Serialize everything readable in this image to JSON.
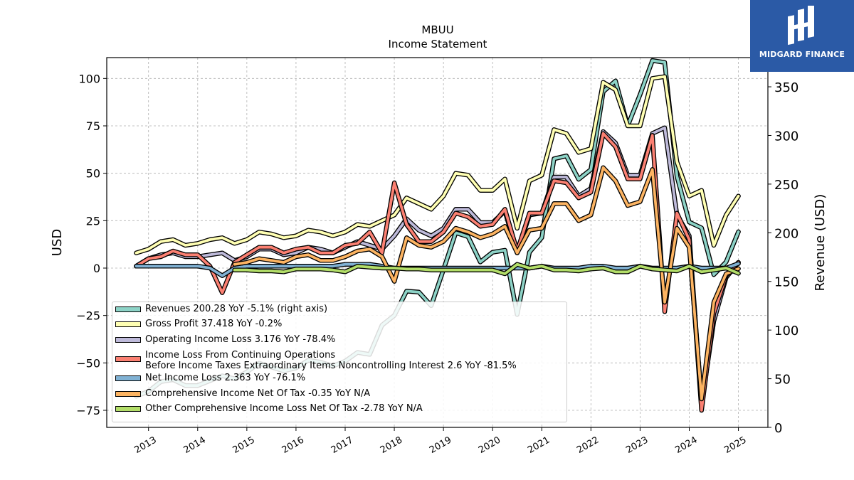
{
  "header": {
    "ticker": "MBUU",
    "subtitle": "Income Statement"
  },
  "logo": {
    "text": "MIDGARD FINANCE",
    "icon": "midgard-logo-icon",
    "background": "#2b5aa6"
  },
  "chart_data": {
    "type": "line",
    "title": "MBUU",
    "subtitle": "Income Statement",
    "ylabel": "USD",
    "ylabel_right": "Revenue (USD)",
    "ylim": [
      -84,
      111
    ],
    "ylim_right": [
      0,
      380
    ],
    "yticks": [
      "-75",
      "-50",
      "-25",
      "0",
      "25",
      "50",
      "75",
      "100"
    ],
    "yticks_right": [
      "0",
      "50",
      "100",
      "150",
      "200",
      "250",
      "300",
      "350"
    ],
    "xlim": [
      2012.15,
      2025.6
    ],
    "xticks": [
      "2013",
      "2014",
      "2015",
      "2016",
      "2017",
      "2018",
      "2019",
      "2020",
      "2021",
      "2022",
      "2023",
      "2024",
      "2025"
    ],
    "grid": true,
    "legend_position": "lower-left",
    "x": [
      2012.75,
      2013.0,
      2013.25,
      2013.5,
      2013.75,
      2014.0,
      2014.25,
      2014.5,
      2014.75,
      2015.0,
      2015.25,
      2015.5,
      2015.75,
      2016.0,
      2016.25,
      2016.5,
      2016.75,
      2017.0,
      2017.25,
      2017.5,
      2017.75,
      2018.0,
      2018.25,
      2018.5,
      2018.75,
      2019.0,
      2019.25,
      2019.5,
      2019.75,
      2020.0,
      2020.25,
      2020.5,
      2020.75,
      2021.0,
      2021.25,
      2021.5,
      2021.75,
      2022.0,
      2022.25,
      2022.5,
      2022.75,
      2023.0,
      2023.25,
      2023.5,
      2023.75,
      2024.0,
      2024.25,
      2024.5,
      2024.75,
      2025.0
    ],
    "series": [
      {
        "name": "Revenues  200.28 YoY -5.1% (right axis)",
        "axis": "right",
        "color": "#8dd3c7",
        "values": [
          32,
          37,
          47,
          49,
          43,
          43,
          48,
          53,
          50,
          57,
          66,
          62,
          58,
          61,
          69,
          67,
          63,
          68,
          77,
          75,
          105,
          115,
          140,
          139,
          125,
          162,
          200,
          196,
          170,
          180,
          182,
          116,
          180,
          195,
          276,
          279,
          255,
          265,
          345,
          356,
          310,
          342,
          377,
          375,
          258,
          211,
          205,
          157,
          170,
          201
        ]
      },
      {
        "name": "Gross Profit  37.418 YoY -0.2%",
        "axis": "left",
        "color": "#ffffb3",
        "values": [
          8,
          10,
          14,
          15,
          12,
          13,
          15,
          16,
          13,
          15,
          19,
          18,
          16,
          17,
          20,
          19,
          17,
          19,
          23,
          22,
          25,
          28,
          37,
          34,
          31,
          38,
          50,
          49,
          41,
          41,
          47,
          21,
          46,
          49,
          73,
          71,
          61,
          63,
          98,
          94,
          75,
          75,
          100,
          101,
          56,
          38,
          41,
          12,
          28,
          38
        ]
      },
      {
        "name": "Operating Income Loss  3.176 YoY -78.4%",
        "axis": "left",
        "color": "#bebada",
        "values": [
          1,
          5,
          7,
          8,
          6,
          6,
          7,
          8,
          4,
          6,
          10,
          10,
          7,
          8,
          11,
          10,
          8,
          11,
          14,
          12,
          10,
          17,
          26,
          20,
          17,
          21,
          31,
          31,
          24,
          24,
          30,
          8,
          28,
          29,
          48,
          48,
          38,
          42,
          72,
          66,
          49,
          49,
          71,
          74,
          28,
          17,
          -72,
          -28,
          -5,
          3
        ]
      },
      {
        "name": "Income Loss From Continuing Operations Before Income Taxes Extraordinary Items Noncontrolling Interest  2.6 YoY -81.5%",
        "axis": "left",
        "color": "#fb8072",
        "lines": [
          "Income Loss From Continuing Operations",
          "Before Income Taxes Extraordinary Items Noncontrolling Interest  2.6 YoY -81.5%"
        ],
        "values": [
          1,
          5,
          6,
          9,
          7,
          7,
          1,
          -13,
          3,
          7,
          11,
          11,
          8,
          10,
          11,
          8,
          8,
          12,
          13,
          19,
          8,
          45,
          23,
          14,
          14,
          19,
          29,
          27,
          22,
          23,
          31,
          9,
          29,
          29,
          46,
          45,
          37,
          40,
          71,
          64,
          47,
          47,
          70,
          -23,
          29,
          15,
          -75,
          -24,
          -4,
          3
        ]
      },
      {
        "name": "Net Income Loss  2.363 YoY -76.1%",
        "axis": "left",
        "color": "#80b1d3",
        "values": [
          1,
          1,
          1,
          1,
          1,
          1,
          0,
          -4,
          0,
          1,
          1,
          1,
          1,
          1,
          1,
          1,
          1,
          2,
          2,
          2,
          1,
          0,
          0,
          0,
          0,
          0,
          0,
          0,
          0,
          0,
          0,
          0,
          0,
          1,
          0,
          0,
          0,
          1,
          1,
          0,
          0,
          1,
          0,
          0,
          0,
          1,
          0,
          0,
          0,
          2.363
        ]
      },
      {
        "name": "Comprehensive Income Net Of Tax  -0.35 YoY N/A",
        "axis": "left",
        "color": "#fdb462",
        "values": [
          null,
          null,
          null,
          null,
          null,
          null,
          null,
          null,
          2,
          3,
          5,
          4,
          3,
          6,
          7,
          4,
          4,
          6,
          9,
          10,
          6,
          -7,
          16,
          12,
          11,
          14,
          21,
          19,
          16,
          18,
          22,
          8,
          20,
          21,
          34,
          34,
          25,
          28,
          53,
          46,
          33,
          35,
          52,
          -18,
          21,
          11,
          -69,
          -18,
          -3,
          -0.35
        ]
      },
      {
        "name": "Other Comprehensive Income Loss Net Of Tax  -2.78 YoY N/A",
        "axis": "left",
        "color": "#b3de69",
        "values": [
          null,
          null,
          null,
          null,
          null,
          null,
          null,
          null,
          -1,
          -1,
          -1.5,
          -1.5,
          -2,
          -0.5,
          -0.5,
          -0.5,
          -1,
          -2,
          1,
          0.5,
          0,
          0,
          -0.5,
          -0.5,
          -1,
          -1,
          -1,
          -1,
          -1,
          -1,
          -3,
          2,
          0,
          1,
          -1,
          -1,
          -1.5,
          -0.5,
          0,
          -2,
          -2,
          1,
          -0.5,
          -1,
          -1.5,
          1,
          -2,
          -1,
          0,
          -2.78
        ]
      }
    ]
  }
}
